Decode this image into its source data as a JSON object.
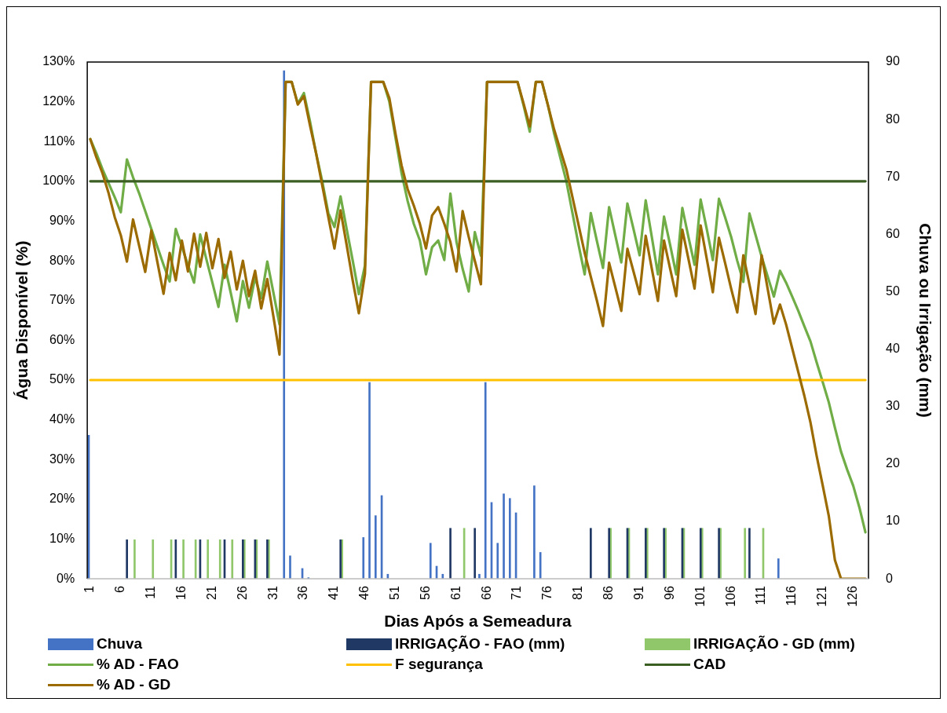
{
  "chart_data": {
    "type": "line",
    "xlabel": "Dias Após a Semeadura",
    "ylabel": "Água Disponível (%)",
    "y2label": "Chuva ou Irrigação (mm)",
    "x": [
      1,
      2,
      3,
      4,
      5,
      6,
      7,
      8,
      9,
      10,
      11,
      12,
      13,
      14,
      15,
      16,
      17,
      18,
      19,
      20,
      21,
      22,
      23,
      24,
      25,
      26,
      27,
      28,
      29,
      30,
      31,
      32,
      33,
      34,
      35,
      36,
      37,
      38,
      39,
      40,
      41,
      42,
      43,
      44,
      45,
      46,
      47,
      48,
      49,
      50,
      51,
      52,
      53,
      54,
      55,
      56,
      57,
      58,
      59,
      60,
      61,
      62,
      63,
      64,
      65,
      66,
      67,
      68,
      69,
      70,
      71,
      72,
      73,
      74,
      75,
      76,
      77,
      78,
      79,
      80,
      81,
      82,
      83,
      84,
      85,
      86,
      87,
      88,
      89,
      90,
      91,
      92,
      93,
      94,
      95,
      96,
      97,
      98,
      99,
      100,
      101,
      102,
      103,
      104,
      105,
      106,
      107,
      108,
      109,
      110,
      111,
      112,
      113,
      114,
      115,
      116,
      117,
      118,
      119,
      120,
      121,
      122,
      123,
      124,
      125,
      126,
      127,
      128
    ],
    "xlim": [
      0.5,
      128.5
    ],
    "xticks": [
      1,
      6,
      11,
      16,
      21,
      26,
      31,
      36,
      41,
      46,
      51,
      56,
      61,
      66,
      71,
      76,
      81,
      86,
      91,
      96,
      101,
      106,
      111,
      116,
      121,
      126
    ],
    "ylim": [
      0,
      130
    ],
    "yticks": [
      {
        "value": 0,
        "label": "0%"
      },
      {
        "value": 10,
        "label": "10%"
      },
      {
        "value": 20,
        "label": "20%"
      },
      {
        "value": 30,
        "label": "30%"
      },
      {
        "value": 40,
        "label": "40%"
      },
      {
        "value": 50,
        "label": "50%"
      },
      {
        "value": 60,
        "label": "60%"
      },
      {
        "value": 70,
        "label": "70%"
      },
      {
        "value": 80,
        "label": "80%"
      },
      {
        "value": 90,
        "label": "90%"
      },
      {
        "value": 100,
        "label": "100%"
      },
      {
        "value": 110,
        "label": "110%"
      },
      {
        "value": 120,
        "label": "120%"
      },
      {
        "value": 130,
        "label": "130%"
      }
    ],
    "y2lim": [
      0,
      90
    ],
    "y2ticks": [
      0,
      10,
      20,
      30,
      40,
      50,
      60,
      70,
      80,
      90
    ],
    "legend": "bottom",
    "series": [
      {
        "name": "Chuva",
        "type": "bar",
        "axis": "y2",
        "color": "#4472c4",
        "x": [
          1,
          33,
          34,
          36,
          37,
          46,
          47,
          48,
          49,
          50,
          57,
          58,
          59,
          60,
          65,
          66,
          67,
          68,
          69,
          70,
          71,
          74,
          75,
          79,
          114
        ],
        "values": [
          25,
          88.5,
          4,
          1.8,
          0.2,
          7.2,
          34.2,
          11,
          14.5,
          0.8,
          6.2,
          2.2,
          0.8,
          null,
          0.8,
          34.2,
          13.3,
          6.2,
          14.8,
          14,
          11.5,
          16.2,
          4.6,
          null,
          3.5
        ]
      },
      {
        "name": "IRRIGAÇÃO - FAO (mm)",
        "type": "bar",
        "axis": "y2",
        "color": "#203864",
        "x": [
          7,
          15,
          19,
          23,
          26,
          28,
          30,
          42,
          60,
          64,
          83,
          86,
          89,
          92,
          95,
          98,
          101,
          104,
          109
        ],
        "values": [
          6.8,
          6.8,
          6.8,
          6.8,
          6.8,
          6.8,
          6.8,
          6.8,
          8.8,
          8.8,
          8.8,
          8.8,
          8.8,
          8.8,
          8.8,
          8.8,
          8.8,
          8.8,
          8.8
        ]
      },
      {
        "name": "IRRIGAÇÃO - GD (mm)",
        "type": "bar",
        "axis": "y2",
        "color": "#8fc76a",
        "x": [
          8,
          11,
          14,
          16,
          18,
          20,
          22,
          24,
          26,
          28,
          30,
          42,
          62,
          86,
          89,
          92,
          95,
          98,
          101,
          104,
          108,
          111
        ],
        "values": [
          6.8,
          6.8,
          6.8,
          6.8,
          6.8,
          6.8,
          6.8,
          6.8,
          6.8,
          6.8,
          6.8,
          6.8,
          8.8,
          8.8,
          8.8,
          8.8,
          8.8,
          8.8,
          8.8,
          8.8,
          8.8,
          8.8
        ]
      },
      {
        "name": "% AD - FAO",
        "color": "#70ad47",
        "values": [
          110.6,
          107,
          103,
          99.5,
          96,
          92.2,
          105.5,
          101,
          97,
          92.5,
          88,
          83.5,
          79,
          74.8,
          88,
          83.5,
          79,
          74.5,
          86.6,
          80.5,
          74.5,
          68.4,
          79,
          72,
          64.8,
          74.9,
          68.2,
          75.8,
          70.6,
          79.8,
          72,
          64,
          125,
          125,
          119.5,
          122.2,
          115,
          107,
          100,
          92,
          88.5,
          96.2,
          88,
          80,
          71.6,
          78.8,
          125,
          125,
          125,
          120,
          111,
          102,
          95,
          89.3,
          85.1,
          76.6,
          83.4,
          85.1,
          80.2,
          96.9,
          84.7,
          78,
          72.3,
          87.2,
          81.3,
          125,
          125,
          125,
          125,
          125,
          125,
          119,
          112.5,
          125,
          125,
          119,
          112,
          106,
          100,
          92,
          84,
          76.6,
          92,
          85,
          78.2,
          93.5,
          86.5,
          79.6,
          94.4,
          88,
          81.4,
          95.2,
          86,
          76.6,
          91.1,
          84,
          76.6,
          93.3,
          86,
          79,
          95.4,
          88,
          80.2,
          95.6,
          91,
          86,
          80,
          74.7,
          91.9,
          86.5,
          81,
          76,
          71,
          77.5,
          74.5,
          71,
          67.4,
          63.5,
          59.7,
          54.5,
          49.5,
          44.4,
          38,
          32,
          27.5,
          23.4,
          18,
          11.7
        ]
      },
      {
        "name": "F segurança",
        "color": "#ffc000",
        "x": [
          1,
          128
        ],
        "values": [
          50,
          50
        ]
      },
      {
        "name": "CAD",
        "color": "#3b5e22",
        "x": [
          1,
          128
        ],
        "values": [
          100,
          100
        ]
      },
      {
        "name": "% AD - GD",
        "color": "#9c6b00",
        "values": [
          110.6,
          106,
          102,
          97,
          91,
          86.4,
          79.8,
          90.4,
          83.8,
          77.2,
          87.6,
          79.6,
          71.7,
          82,
          75.1,
          85.1,
          77.3,
          86.8,
          78.5,
          87,
          78.1,
          85.5,
          75.7,
          82.3,
          72.8,
          80,
          71.1,
          77.5,
          68,
          75.4,
          66,
          56.4,
          125,
          125,
          119.3,
          121.4,
          114,
          107,
          99,
          91,
          83.1,
          92.7,
          84,
          75,
          66.8,
          76.7,
          125,
          125,
          125,
          120.9,
          112,
          104,
          98,
          93.9,
          89.3,
          83.1,
          91.4,
          93.5,
          89.3,
          84.7,
          77.3,
          92.5,
          86,
          80,
          74.1,
          125,
          125,
          125,
          125,
          125,
          125,
          119.5,
          113.8,
          125,
          125,
          119,
          113,
          108,
          103,
          96,
          89,
          82,
          76,
          70,
          63.6,
          79.5,
          73.5,
          67.4,
          83,
          77.3,
          71.6,
          86.3,
          78,
          69.9,
          85.1,
          78,
          71.1,
          87.8,
          80.5,
          73,
          88.9,
          80.5,
          72.1,
          85.8,
          79.5,
          73,
          67,
          81.4,
          74,
          66.6,
          81.4,
          72.8,
          64.2,
          69,
          64,
          58,
          52,
          46,
          39.3,
          31,
          23.5,
          15.8,
          4.7,
          0,
          0,
          0,
          0,
          0
        ]
      }
    ]
  }
}
